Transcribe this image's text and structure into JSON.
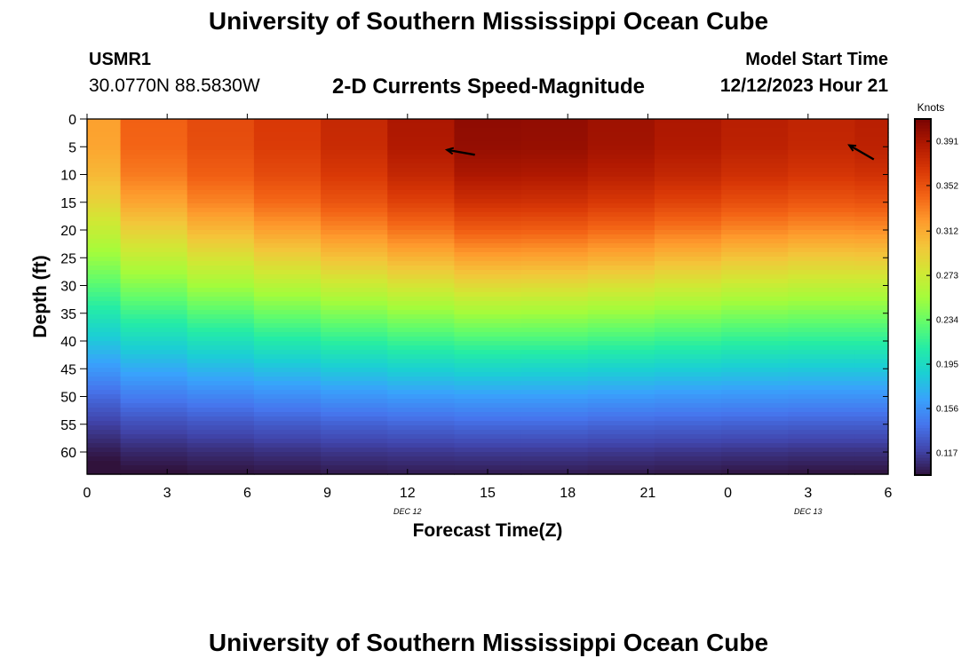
{
  "header": {
    "title": "University of Southern Mississippi Ocean Cube",
    "station_id": "USMR1",
    "station_coords": "30.0770N  88.5830W",
    "subtitle": "2-D Currents Speed-Magnitude",
    "start_label": "Model Start Time",
    "start_value": "12/12/2023 Hour 21"
  },
  "footer": {
    "title": "University of Southern Mississippi Ocean Cube"
  },
  "chart_data": {
    "type": "heatmap",
    "xlabel": "Forecast Time(Z)",
    "ylabel": "Depth (ft)",
    "x_tick_labels": [
      "0",
      "3",
      "6",
      "9",
      "12",
      "15",
      "18",
      "21",
      "0",
      "3",
      "6"
    ],
    "date_labels": [
      {
        "text": "DEC 12",
        "at_tick": 4
      },
      {
        "text": "DEC 13",
        "at_tick": 9
      }
    ],
    "xlim_hours": [
      0,
      30
    ],
    "ylim_ft": [
      0,
      64
    ],
    "y_ticks": [
      0,
      5,
      10,
      15,
      20,
      25,
      30,
      35,
      40,
      45,
      50,
      55,
      60
    ],
    "column_centers_hours": [
      0,
      2.5,
      5,
      7.5,
      10,
      12.5,
      15,
      17.5,
      20,
      22.5,
      25,
      27.5,
      30
    ],
    "profile_depths_ft": [
      0,
      5,
      10,
      15,
      20,
      25,
      30,
      35,
      40,
      45,
      50,
      55,
      60,
      64
    ],
    "profiles_knots": [
      [
        0.318,
        0.316,
        0.306,
        0.29,
        0.27,
        0.25,
        0.228,
        0.205,
        0.183,
        0.16,
        0.137,
        0.118,
        0.102,
        0.092
      ],
      [
        0.345,
        0.343,
        0.334,
        0.316,
        0.292,
        0.268,
        0.243,
        0.218,
        0.193,
        0.169,
        0.146,
        0.124,
        0.107,
        0.096
      ],
      [
        0.356,
        0.354,
        0.346,
        0.33,
        0.306,
        0.28,
        0.254,
        0.227,
        0.2,
        0.175,
        0.15,
        0.127,
        0.109,
        0.098
      ],
      [
        0.366,
        0.364,
        0.356,
        0.341,
        0.318,
        0.291,
        0.263,
        0.235,
        0.207,
        0.18,
        0.154,
        0.13,
        0.111,
        0.099
      ],
      [
        0.377,
        0.375,
        0.366,
        0.351,
        0.328,
        0.301,
        0.272,
        0.242,
        0.213,
        0.185,
        0.158,
        0.133,
        0.113,
        0.101
      ],
      [
        0.39,
        0.388,
        0.378,
        0.361,
        0.337,
        0.309,
        0.279,
        0.248,
        0.218,
        0.189,
        0.161,
        0.135,
        0.114,
        0.102
      ],
      [
        0.402,
        0.4,
        0.39,
        0.372,
        0.347,
        0.317,
        0.286,
        0.254,
        0.222,
        0.192,
        0.163,
        0.137,
        0.115,
        0.102
      ],
      [
        0.401,
        0.399,
        0.389,
        0.371,
        0.346,
        0.316,
        0.285,
        0.253,
        0.222,
        0.191,
        0.163,
        0.137,
        0.115,
        0.102
      ],
      [
        0.396,
        0.394,
        0.384,
        0.366,
        0.341,
        0.312,
        0.281,
        0.25,
        0.219,
        0.189,
        0.161,
        0.135,
        0.114,
        0.101
      ],
      [
        0.39,
        0.388,
        0.378,
        0.36,
        0.335,
        0.306,
        0.276,
        0.246,
        0.216,
        0.187,
        0.159,
        0.134,
        0.113,
        0.1
      ],
      [
        0.384,
        0.382,
        0.372,
        0.354,
        0.329,
        0.3,
        0.271,
        0.242,
        0.213,
        0.185,
        0.158,
        0.133,
        0.112,
        0.099
      ],
      [
        0.38,
        0.378,
        0.368,
        0.35,
        0.325,
        0.296,
        0.268,
        0.24,
        0.212,
        0.184,
        0.157,
        0.132,
        0.111,
        0.098
      ],
      [
        0.384,
        0.382,
        0.371,
        0.352,
        0.326,
        0.297,
        0.268,
        0.24,
        0.212,
        0.184,
        0.157,
        0.132,
        0.111,
        0.098
      ]
    ],
    "vectors": [
      {
        "time_h": 14,
        "depth_ft": 6,
        "dir_deg": 280
      },
      {
        "time_h": 29,
        "depth_ft": 6,
        "dir_deg": 300
      }
    ],
    "colorbar": {
      "label": "Knots",
      "range": [
        0.0975,
        0.4105
      ],
      "tick_labels": [
        "0.391",
        "0.352",
        "0.312",
        "0.273",
        "0.234",
        "0.195",
        "0.156",
        "0.117"
      ],
      "colormap": [
        "#30123b",
        "#4145ab",
        "#4675ed",
        "#39a2fc",
        "#1bcfd4",
        "#24eca6",
        "#61fc6c",
        "#a4fc3b",
        "#d1e834",
        "#f3c63a",
        "#fe9b2d",
        "#f36315",
        "#d93806",
        "#b11901",
        "#7a0402"
      ]
    }
  }
}
